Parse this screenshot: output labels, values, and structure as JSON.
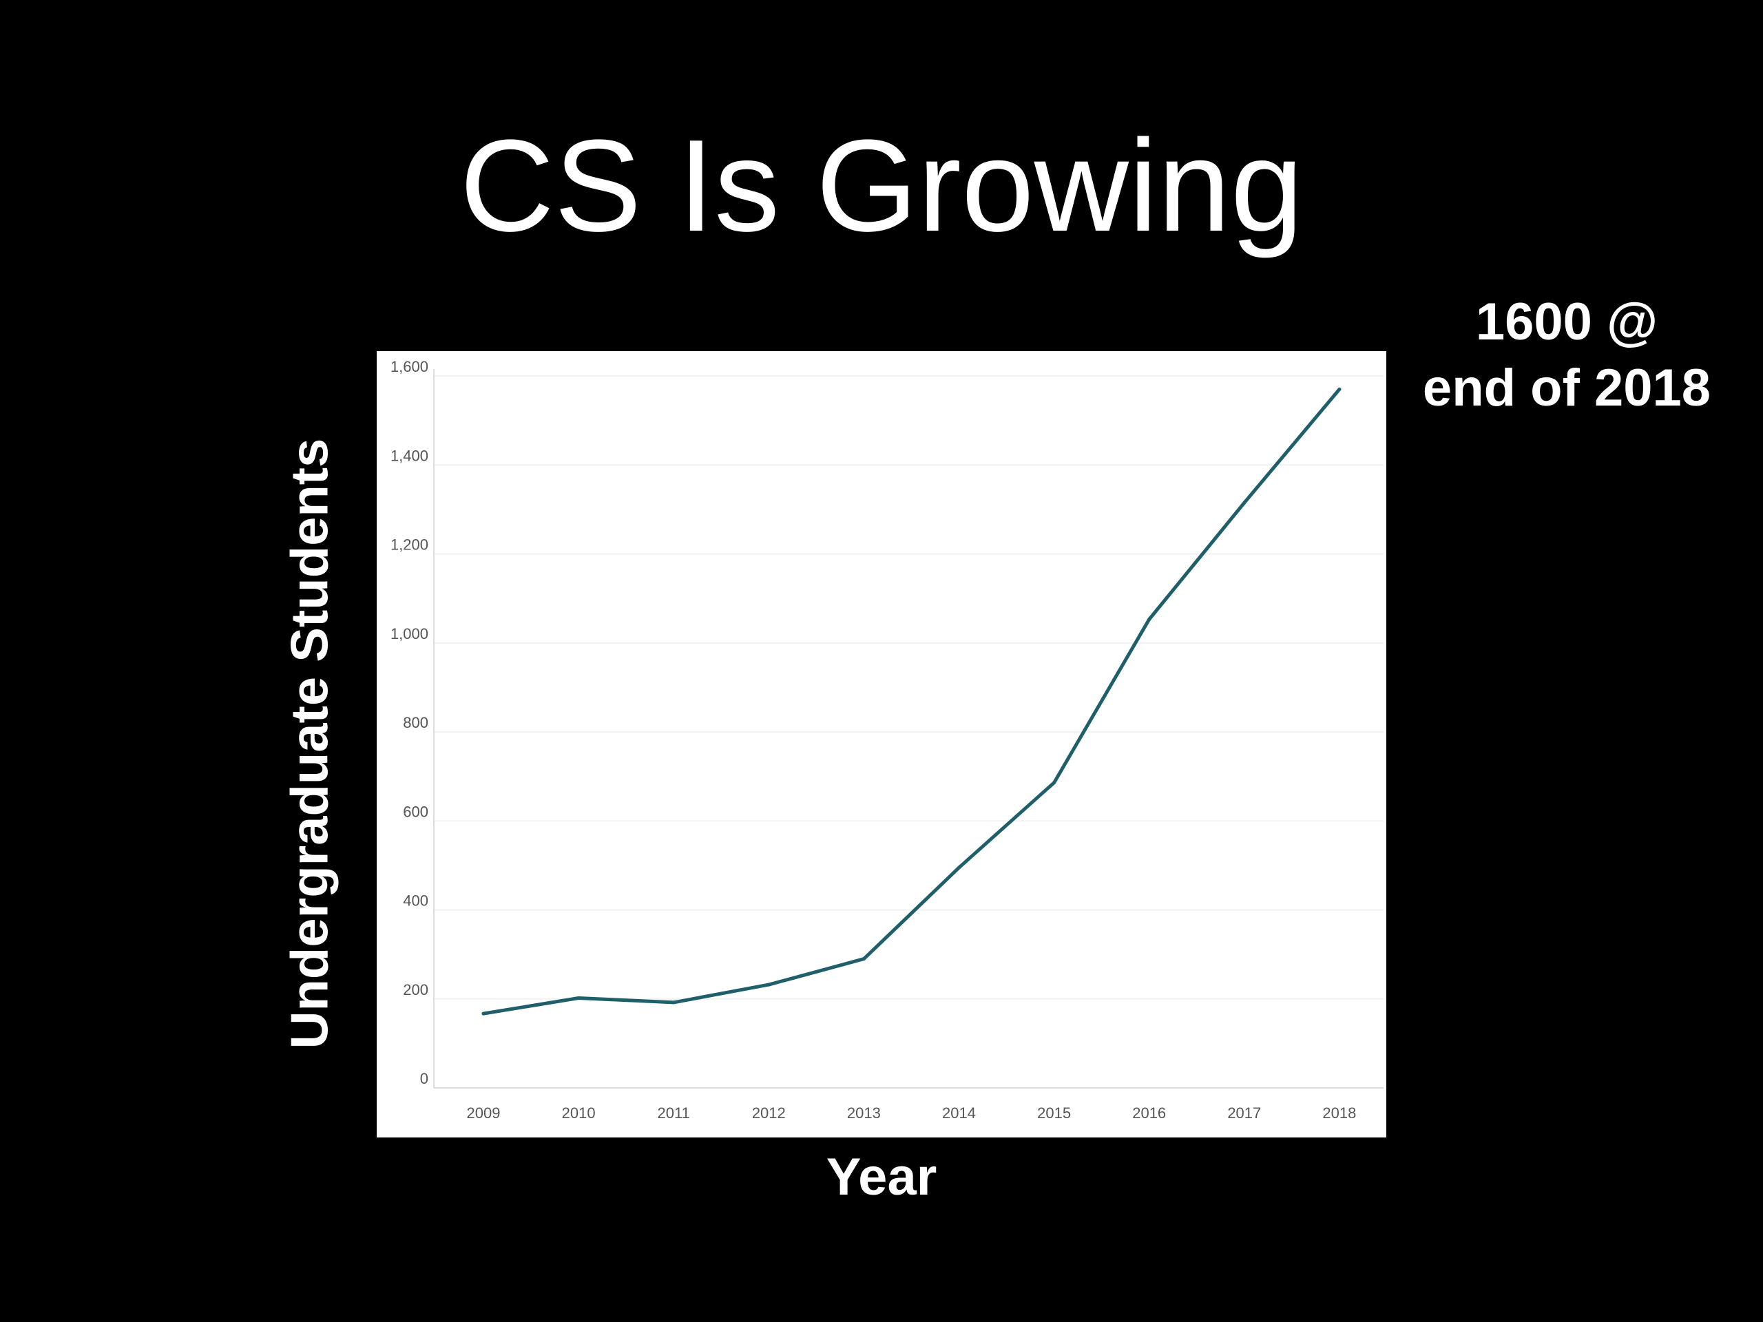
{
  "slide": {
    "title": "CS Is Growing",
    "callout": [
      "1600 @",
      "end of 2018"
    ]
  },
  "chart_data": {
    "type": "line",
    "title": "",
    "xlabel": "Year",
    "ylabel": "Undergraduate Students",
    "x": [
      "2009",
      "2010",
      "2011",
      "2012",
      "2013",
      "2014",
      "2015",
      "2016",
      "2017",
      "2018"
    ],
    "y_ticks": [
      "0",
      "200",
      "400",
      "600",
      "800",
      "1,000",
      "1,200",
      "1,400",
      "1,600"
    ],
    "y_tick_values": [
      0,
      200,
      400,
      600,
      800,
      1000,
      1200,
      1400,
      1600
    ],
    "ylim": [
      0,
      1600
    ],
    "series": [
      {
        "values": [
          167,
          202,
          192,
          232,
          290,
          495,
          686,
          1053,
          1315,
          1570
        ],
        "color": "#1f5f69"
      }
    ],
    "grid": true,
    "gridline_color": "#f2f2f2",
    "axis_color": "#dddddd"
  }
}
